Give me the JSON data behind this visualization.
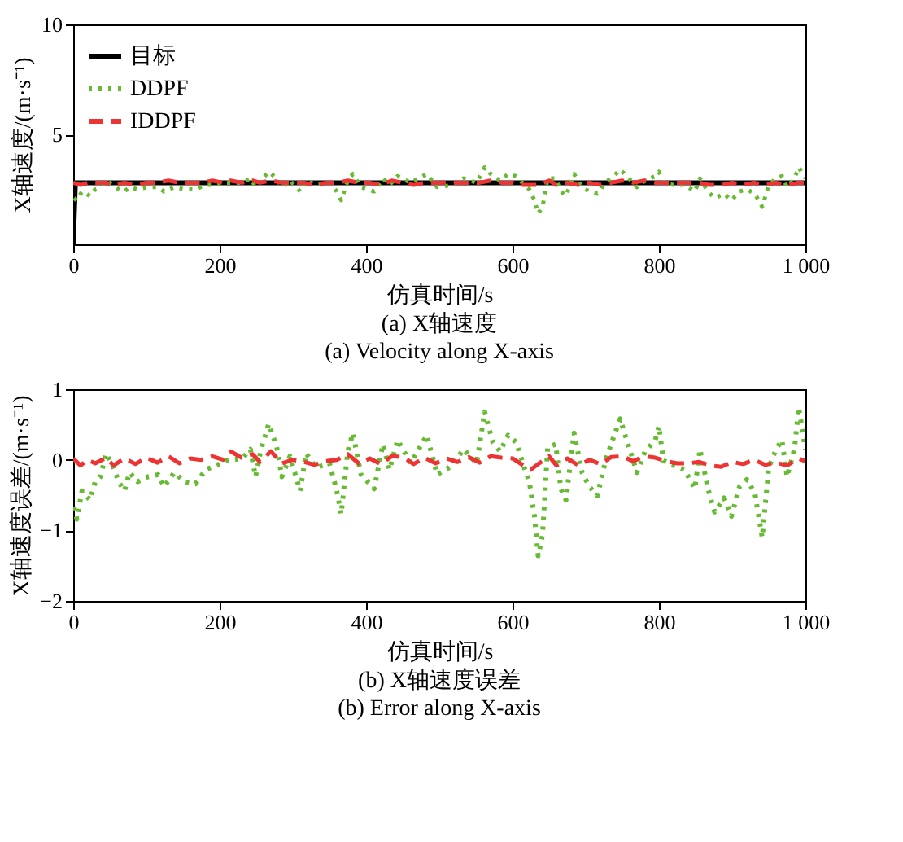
{
  "chart_data": [
    {
      "type": "line",
      "title": "(a) X轴速度",
      "subtitle": "(a) Velocity along X-axis",
      "xlabel": "仿真时间/s",
      "ylabel": "X轴速度/(m·s⁻¹)",
      "xlim": [
        0,
        1000
      ],
      "ylim": [
        0,
        10
      ],
      "xticks": [
        0,
        200,
        400,
        600,
        800,
        {
          "value": 1000,
          "label": "1 000"
        }
      ],
      "yticks": [
        5,
        10
      ],
      "grid": false,
      "legend": "top left",
      "series": [
        {
          "name": "目标",
          "color": "#000000",
          "line_style": "solid",
          "x": [
            0,
            3,
            1000
          ],
          "values": [
            0,
            2.8,
            2.8
          ]
        },
        {
          "name": "DDPF",
          "color": "#66bb33",
          "line_style": "dotted",
          "x": [
            1,
            5,
            12,
            23,
            30,
            37,
            45,
            55,
            62,
            70,
            77,
            88,
            102,
            116,
            124,
            138,
            152,
            167,
            181,
            195,
            210,
            231,
            242,
            249,
            256,
            267,
            278,
            285,
            296,
            310,
            318,
            332,
            350,
            360,
            366,
            375,
            382,
            393,
            411,
            423,
            432,
            443,
            461,
            483,
            497,
            518,
            533,
            551,
            562,
            573,
            583,
            594,
            605,
            616,
            623,
            630,
            635,
            641,
            648,
            659,
            666,
            673,
            684,
            695,
            705,
            716,
            727,
            738,
            747,
            759,
            770,
            781,
            795,
            800,
            806,
            820,
            835,
            849,
            856,
            867,
            876,
            889,
            899,
            910,
            920,
            931,
            941,
            950,
            960,
            968,
            975,
            985,
            991,
            1000
          ],
          "values": [
            2.1,
            2.0,
            2.4,
            2.2,
            2.5,
            2.6,
            2.9,
            2.7,
            2.5,
            2.4,
            2.6,
            2.5,
            2.6,
            2.6,
            2.4,
            2.6,
            2.5,
            2.5,
            2.7,
            2.7,
            2.8,
            2.8,
            3.0,
            2.6,
            2.9,
            3.3,
            3.0,
            2.6,
            2.9,
            2.4,
            2.9,
            2.7,
            2.8,
            2.4,
            2.0,
            2.9,
            3.2,
            2.6,
            2.4,
            3.0,
            2.7,
            3.1,
            2.8,
            3.2,
            2.6,
            2.7,
            3.0,
            2.8,
            3.5,
            3.1,
            2.9,
            3.2,
            3.1,
            2.7,
            2.5,
            2.0,
            1.4,
            1.7,
            3.0,
            3.0,
            2.4,
            2.2,
            3.2,
            2.6,
            2.4,
            2.3,
            2.8,
            3.1,
            3.4,
            3.0,
            2.6,
            2.9,
            3.1,
            3.3,
            2.8,
            2.7,
            2.7,
            2.4,
            3.0,
            2.4,
            2.1,
            2.3,
            2.0,
            2.4,
            2.5,
            2.3,
            1.7,
            2.7,
            3.0,
            3.1,
            2.6,
            3.0,
            3.5,
            3.0
          ]
        },
        {
          "name": "IDDPF",
          "color": "#ee3333",
          "line_style": "dashed",
          "x": [
            0,
            10,
            20,
            30,
            45,
            55,
            70,
            85,
            100,
            115,
            130,
            145,
            160,
            175,
            190,
            205,
            215,
            230,
            245,
            255,
            270,
            285,
            300,
            315,
            330,
            345,
            360,
            375,
            390,
            405,
            420,
            435,
            450,
            465,
            480,
            495,
            510,
            525,
            540,
            555,
            570,
            585,
            600,
            615,
            625,
            635,
            650,
            660,
            675,
            690,
            705,
            720,
            735,
            750,
            765,
            780,
            795,
            810,
            825,
            840,
            855,
            870,
            885,
            900,
            915,
            930,
            945,
            960,
            975,
            990,
            1000
          ],
          "values": [
            2.8,
            2.7,
            2.8,
            2.8,
            2.8,
            2.7,
            2.8,
            2.7,
            2.8,
            2.8,
            2.9,
            2.8,
            2.8,
            2.8,
            2.9,
            2.8,
            2.9,
            2.8,
            2.9,
            2.8,
            2.9,
            2.8,
            2.8,
            2.8,
            2.7,
            2.8,
            2.8,
            2.9,
            2.8,
            2.8,
            2.7,
            2.9,
            2.8,
            2.7,
            2.8,
            2.8,
            2.8,
            2.8,
            2.8,
            2.8,
            2.9,
            2.8,
            2.8,
            2.7,
            2.7,
            2.7,
            2.9,
            2.7,
            2.8,
            2.7,
            2.8,
            2.7,
            2.8,
            2.9,
            2.8,
            2.9,
            2.8,
            2.8,
            2.8,
            2.8,
            2.8,
            2.7,
            2.7,
            2.8,
            2.7,
            2.8,
            2.7,
            2.8,
            2.7,
            2.8,
            2.8
          ]
        }
      ]
    },
    {
      "type": "line",
      "title": "(b) X轴速度误差",
      "subtitle": "(b) Error along X-axis",
      "xlabel": "仿真时间/s",
      "ylabel": "X轴速度误差/(m·s⁻¹)",
      "xlim": [
        0,
        1000
      ],
      "ylim": [
        -2,
        1
      ],
      "xticks": [
        0,
        200,
        400,
        600,
        800,
        {
          "value": 1000,
          "label": "1 000"
        }
      ],
      "yticks": [
        -2,
        -1,
        0,
        1
      ],
      "grid": false,
      "series": [
        {
          "color": "#66bb33",
          "line_style": "dotted",
          "x": [
            1,
            5,
            12,
            23,
            30,
            37,
            45,
            55,
            62,
            70,
            77,
            88,
            102,
            116,
            124,
            138,
            152,
            167,
            181,
            195,
            210,
            231,
            242,
            249,
            256,
            267,
            278,
            285,
            296,
            310,
            318,
            332,
            350,
            360,
            366,
            375,
            382,
            393,
            411,
            423,
            432,
            443,
            461,
            483,
            497,
            518,
            533,
            551,
            562,
            573,
            583,
            594,
            605,
            616,
            623,
            630,
            635,
            641,
            648,
            659,
            666,
            673,
            684,
            695,
            705,
            716,
            727,
            738,
            747,
            759,
            770,
            781,
            795,
            800,
            806,
            820,
            835,
            849,
            856,
            867,
            876,
            889,
            899,
            910,
            920,
            931,
            941,
            950,
            960,
            968,
            975,
            985,
            991,
            1000
          ],
          "values": [
            -0.67,
            -0.84,
            -0.44,
            -0.57,
            -0.31,
            -0.24,
            0.09,
            -0.11,
            -0.31,
            -0.44,
            -0.18,
            -0.31,
            -0.24,
            -0.21,
            -0.38,
            -0.18,
            -0.31,
            -0.34,
            -0.14,
            -0.08,
            -0.01,
            0.02,
            0.15,
            -0.24,
            0.12,
            0.51,
            0.18,
            -0.24,
            0.05,
            -0.44,
            0.09,
            -0.11,
            -0.05,
            -0.44,
            -0.77,
            0.12,
            0.38,
            -0.21,
            -0.41,
            0.22,
            -0.14,
            0.28,
            -0.05,
            0.35,
            -0.21,
            -0.08,
            0.15,
            -0.05,
            0.68,
            0.25,
            0.12,
            0.35,
            0.25,
            -0.11,
            -0.31,
            -0.8,
            -1.36,
            -1.07,
            0.18,
            0.22,
            -0.41,
            -0.57,
            0.38,
            -0.18,
            -0.38,
            -0.51,
            -0.01,
            0.32,
            0.58,
            0.18,
            -0.18,
            0.12,
            0.28,
            0.48,
            -0.01,
            -0.08,
            -0.14,
            -0.41,
            0.15,
            -0.41,
            -0.74,
            -0.54,
            -0.8,
            -0.38,
            -0.28,
            -0.47,
            -1.1,
            -0.11,
            0.15,
            0.28,
            -0.24,
            0.15,
            0.74,
            0.15
          ]
        },
        {
          "color": "#ee3333",
          "line_style": "dashed",
          "x": [
            0,
            10,
            20,
            30,
            45,
            55,
            70,
            85,
            100,
            115,
            130,
            145,
            160,
            175,
            190,
            205,
            215,
            230,
            245,
            255,
            270,
            285,
            300,
            315,
            330,
            345,
            360,
            375,
            390,
            405,
            420,
            435,
            450,
            465,
            480,
            495,
            510,
            525,
            540,
            555,
            570,
            585,
            600,
            615,
            625,
            635,
            650,
            660,
            675,
            690,
            705,
            720,
            735,
            750,
            765,
            780,
            795,
            810,
            825,
            840,
            855,
            870,
            885,
            900,
            915,
            930,
            945,
            960,
            975,
            990,
            1000
          ],
          "values": [
            0.02,
            -0.08,
            0,
            -0.05,
            0.03,
            -0.08,
            0.02,
            -0.06,
            0.03,
            -0.04,
            0.05,
            -0.05,
            0.02,
            0,
            0.05,
            0,
            0.12,
            0.03,
            0.08,
            -0.03,
            0.12,
            -0.05,
            0,
            -0.03,
            -0.07,
            -0.02,
            0,
            0.08,
            -0.05,
            0.02,
            -0.06,
            0.05,
            0.04,
            -0.06,
            0.03,
            -0.05,
            0.02,
            -0.03,
            0.04,
            -0.04,
            0.05,
            0.03,
            0.02,
            -0.08,
            -0.14,
            -0.06,
            0.05,
            -0.08,
            0.02,
            -0.08,
            0,
            -0.06,
            0.04,
            0.05,
            -0.02,
            0.05,
            0.03,
            -0.02,
            -0.05,
            -0.05,
            -0.03,
            -0.08,
            -0.1,
            -0.03,
            -0.06,
            0,
            -0.07,
            -0.04,
            -0.08,
            0.02,
            -0.02
          ]
        }
      ]
    }
  ]
}
